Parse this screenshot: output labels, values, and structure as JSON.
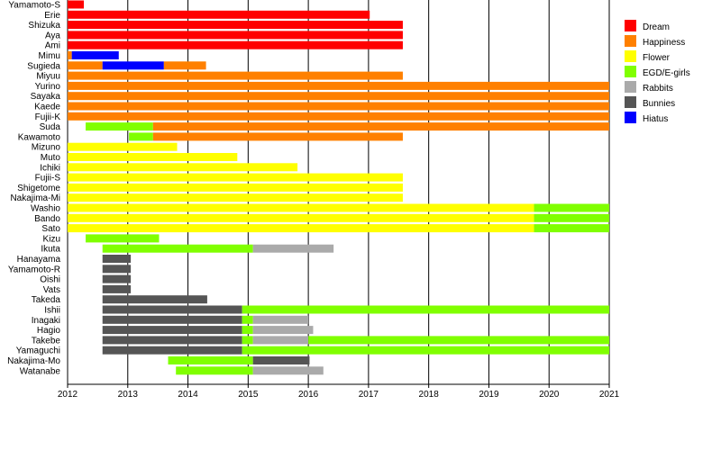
{
  "chart_data": {
    "type": "bar",
    "orientation": "horizontal-timeline",
    "title": "",
    "xlabel": "",
    "ylabel": "",
    "xlim": [
      2012,
      2021
    ],
    "x_ticks": [
      "2012",
      "2013",
      "2014",
      "2015",
      "2016",
      "2017",
      "2018",
      "2019",
      "2020",
      "2021"
    ],
    "grid": "vertical-major",
    "legend_position": "right",
    "legend": [
      {
        "name": "Dream",
        "color": "#ff0000"
      },
      {
        "name": "Happiness",
        "color": "#ff8000"
      },
      {
        "name": "Flower",
        "color": "#ffff00"
      },
      {
        "name": "EGD/E-girls",
        "color": "#80ff00"
      },
      {
        "name": "Rabbits",
        "color": "#aaaaaa"
      },
      {
        "name": "Bunnies",
        "color": "#555555"
      },
      {
        "name": "Hiatus",
        "color": "#0000ff"
      }
    ],
    "members": [
      {
        "name": "Yamamoto-S",
        "periods": [
          {
            "group": "Dream",
            "start": 2012.0,
            "end": 2012.27
          }
        ]
      },
      {
        "name": "Erie",
        "periods": [
          {
            "group": "Dream",
            "start": 2012.0,
            "end": 2017.02
          }
        ]
      },
      {
        "name": "Shizuka",
        "periods": [
          {
            "group": "Dream",
            "start": 2012.0,
            "end": 2017.57
          }
        ]
      },
      {
        "name": "Aya",
        "periods": [
          {
            "group": "Dream",
            "start": 2012.0,
            "end": 2017.57
          }
        ]
      },
      {
        "name": "Ami",
        "periods": [
          {
            "group": "Dream",
            "start": 2012.0,
            "end": 2017.57
          }
        ]
      },
      {
        "name": "Mimu",
        "periods": [
          {
            "group": "Happiness",
            "start": 2012.0,
            "end": 2012.07
          },
          {
            "group": "Hiatus",
            "start": 2012.07,
            "end": 2012.85
          }
        ]
      },
      {
        "name": "Sugieda",
        "periods": [
          {
            "group": "Happiness",
            "start": 2012.0,
            "end": 2012.58
          },
          {
            "group": "Hiatus",
            "start": 2012.58,
            "end": 2013.6
          },
          {
            "group": "Happiness",
            "start": 2013.6,
            "end": 2014.3
          }
        ]
      },
      {
        "name": "Miyuu",
        "periods": [
          {
            "group": "Happiness",
            "start": 2012.0,
            "end": 2017.57
          }
        ]
      },
      {
        "name": "Yurino",
        "periods": [
          {
            "group": "Happiness",
            "start": 2012.0,
            "end": 2021.0
          }
        ]
      },
      {
        "name": "Sayaka",
        "periods": [
          {
            "group": "Happiness",
            "start": 2012.0,
            "end": 2021.0
          }
        ]
      },
      {
        "name": "Kaede",
        "periods": [
          {
            "group": "Happiness",
            "start": 2012.0,
            "end": 2021.0
          }
        ]
      },
      {
        "name": "Fujii-K",
        "periods": [
          {
            "group": "Happiness",
            "start": 2012.0,
            "end": 2021.0
          }
        ]
      },
      {
        "name": "Suda",
        "periods": [
          {
            "group": "EGD/E-girls",
            "start": 2012.3,
            "end": 2013.42
          },
          {
            "group": "Happiness",
            "start": 2013.42,
            "end": 2021.0
          }
        ]
      },
      {
        "name": "Kawamoto",
        "periods": [
          {
            "group": "EGD/E-girls",
            "start": 2013.02,
            "end": 2013.42
          },
          {
            "group": "Happiness",
            "start": 2013.42,
            "end": 2017.57
          }
        ]
      },
      {
        "name": "Mizuno",
        "periods": [
          {
            "group": "Flower",
            "start": 2012.0,
            "end": 2013.82
          }
        ]
      },
      {
        "name": "Muto",
        "periods": [
          {
            "group": "Flower",
            "start": 2012.0,
            "end": 2014.82
          }
        ]
      },
      {
        "name": "Ichiki",
        "periods": [
          {
            "group": "Flower",
            "start": 2012.0,
            "end": 2015.82
          }
        ]
      },
      {
        "name": "Fujii-S",
        "periods": [
          {
            "group": "Flower",
            "start": 2012.0,
            "end": 2017.57
          }
        ]
      },
      {
        "name": "Shigetome",
        "periods": [
          {
            "group": "Flower",
            "start": 2012.0,
            "end": 2017.57
          }
        ]
      },
      {
        "name": "Nakajima-Mi",
        "periods": [
          {
            "group": "Flower",
            "start": 2012.0,
            "end": 2017.57
          }
        ]
      },
      {
        "name": "Washio",
        "periods": [
          {
            "group": "Flower",
            "start": 2012.0,
            "end": 2019.75
          },
          {
            "group": "EGD/E-girls",
            "start": 2019.75,
            "end": 2021.0
          }
        ]
      },
      {
        "name": "Bando",
        "periods": [
          {
            "group": "Flower",
            "start": 2012.0,
            "end": 2019.75
          },
          {
            "group": "EGD/E-girls",
            "start": 2019.75,
            "end": 2021.0
          }
        ]
      },
      {
        "name": "Sato",
        "periods": [
          {
            "group": "Flower",
            "start": 2012.0,
            "end": 2019.75
          },
          {
            "group": "EGD/E-girls",
            "start": 2019.75,
            "end": 2021.0
          }
        ]
      },
      {
        "name": "Kizu",
        "periods": [
          {
            "group": "EGD/E-girls",
            "start": 2012.3,
            "end": 2013.52
          }
        ]
      },
      {
        "name": "Ikuta",
        "periods": [
          {
            "group": "EGD/E-girls",
            "start": 2012.58,
            "end": 2015.08
          },
          {
            "group": "Rabbits",
            "start": 2015.08,
            "end": 2016.42
          }
        ]
      },
      {
        "name": "Hanayama",
        "periods": [
          {
            "group": "Bunnies",
            "start": 2012.58,
            "end": 2013.05
          }
        ]
      },
      {
        "name": "Yamamoto-R",
        "periods": [
          {
            "group": "Bunnies",
            "start": 2012.58,
            "end": 2013.05
          }
        ]
      },
      {
        "name": "Oishi",
        "periods": [
          {
            "group": "Bunnies",
            "start": 2012.58,
            "end": 2013.05
          }
        ]
      },
      {
        "name": "Vats",
        "periods": [
          {
            "group": "Bunnies",
            "start": 2012.58,
            "end": 2013.05
          }
        ]
      },
      {
        "name": "Takeda",
        "periods": [
          {
            "group": "Bunnies",
            "start": 2012.58,
            "end": 2014.32
          }
        ]
      },
      {
        "name": "Ishii",
        "periods": [
          {
            "group": "Bunnies",
            "start": 2012.58,
            "end": 2014.9
          },
          {
            "group": "EGD/E-girls",
            "start": 2014.9,
            "end": 2021.0
          }
        ]
      },
      {
        "name": "Inagaki",
        "periods": [
          {
            "group": "Bunnies",
            "start": 2012.58,
            "end": 2014.9
          },
          {
            "group": "EGD/E-girls",
            "start": 2014.9,
            "end": 2015.08
          },
          {
            "group": "Rabbits",
            "start": 2015.08,
            "end": 2016.0
          }
        ]
      },
      {
        "name": "Hagio",
        "periods": [
          {
            "group": "Bunnies",
            "start": 2012.58,
            "end": 2014.9
          },
          {
            "group": "EGD/E-girls",
            "start": 2014.9,
            "end": 2015.08
          },
          {
            "group": "Rabbits",
            "start": 2015.08,
            "end": 2016.08
          }
        ]
      },
      {
        "name": "Takebe",
        "periods": [
          {
            "group": "Bunnies",
            "start": 2012.58,
            "end": 2014.9
          },
          {
            "group": "EGD/E-girls",
            "start": 2014.9,
            "end": 2015.08
          },
          {
            "group": "Rabbits",
            "start": 2015.08,
            "end": 2016.0
          },
          {
            "group": "EGD/E-girls",
            "start": 2016.0,
            "end": 2021.0
          }
        ]
      },
      {
        "name": "Yamaguchi",
        "periods": [
          {
            "group": "Bunnies",
            "start": 2012.58,
            "end": 2014.9
          },
          {
            "group": "EGD/E-girls",
            "start": 2014.9,
            "end": 2021.0
          }
        ]
      },
      {
        "name": "Nakajima-Mo",
        "periods": [
          {
            "group": "EGD/E-girls",
            "start": 2013.67,
            "end": 2015.08
          },
          {
            "group": "Bunnies",
            "start": 2015.08,
            "end": 2016.02
          }
        ]
      },
      {
        "name": "Watanabe",
        "periods": [
          {
            "group": "EGD/E-girls",
            "start": 2013.8,
            "end": 2015.08
          },
          {
            "group": "Rabbits",
            "start": 2015.08,
            "end": 2016.25
          }
        ]
      }
    ]
  }
}
